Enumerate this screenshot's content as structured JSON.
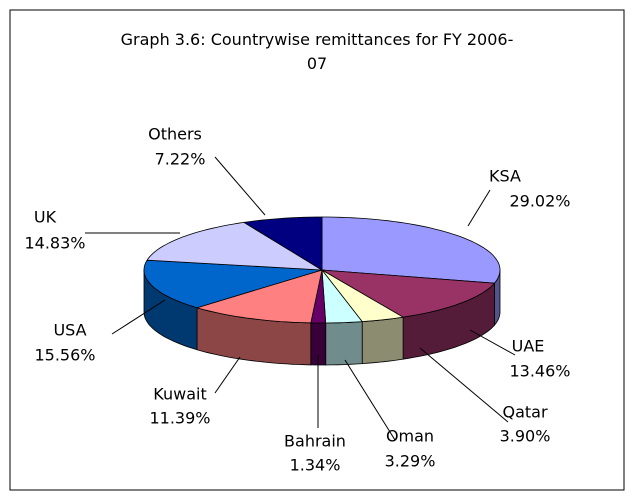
{
  "chart_data": {
    "type": "pie3d",
    "title": "Graph 3.6: Countrywise remittances for FY 2006-07",
    "categories": [
      "KSA",
      "UAE",
      "Qatar",
      "Oman",
      "Bahrain",
      "Kuwait",
      "USA",
      "UK",
      "Others"
    ],
    "values": [
      29.02,
      13.46,
      3.9,
      3.29,
      1.34,
      11.39,
      15.56,
      14.83,
      7.22
    ],
    "value_labels": [
      "29.02%",
      "13.46%",
      "3.90%",
      "3.29%",
      "1.34%",
      "11.39%",
      "15.56%",
      "14.83%",
      "7.22%"
    ],
    "colors": [
      "#9999ff",
      "#993366",
      "#ffffcc",
      "#ccffff",
      "#660066",
      "#ff8080",
      "#0066cc",
      "#ccccff",
      "#000080"
    ]
  }
}
